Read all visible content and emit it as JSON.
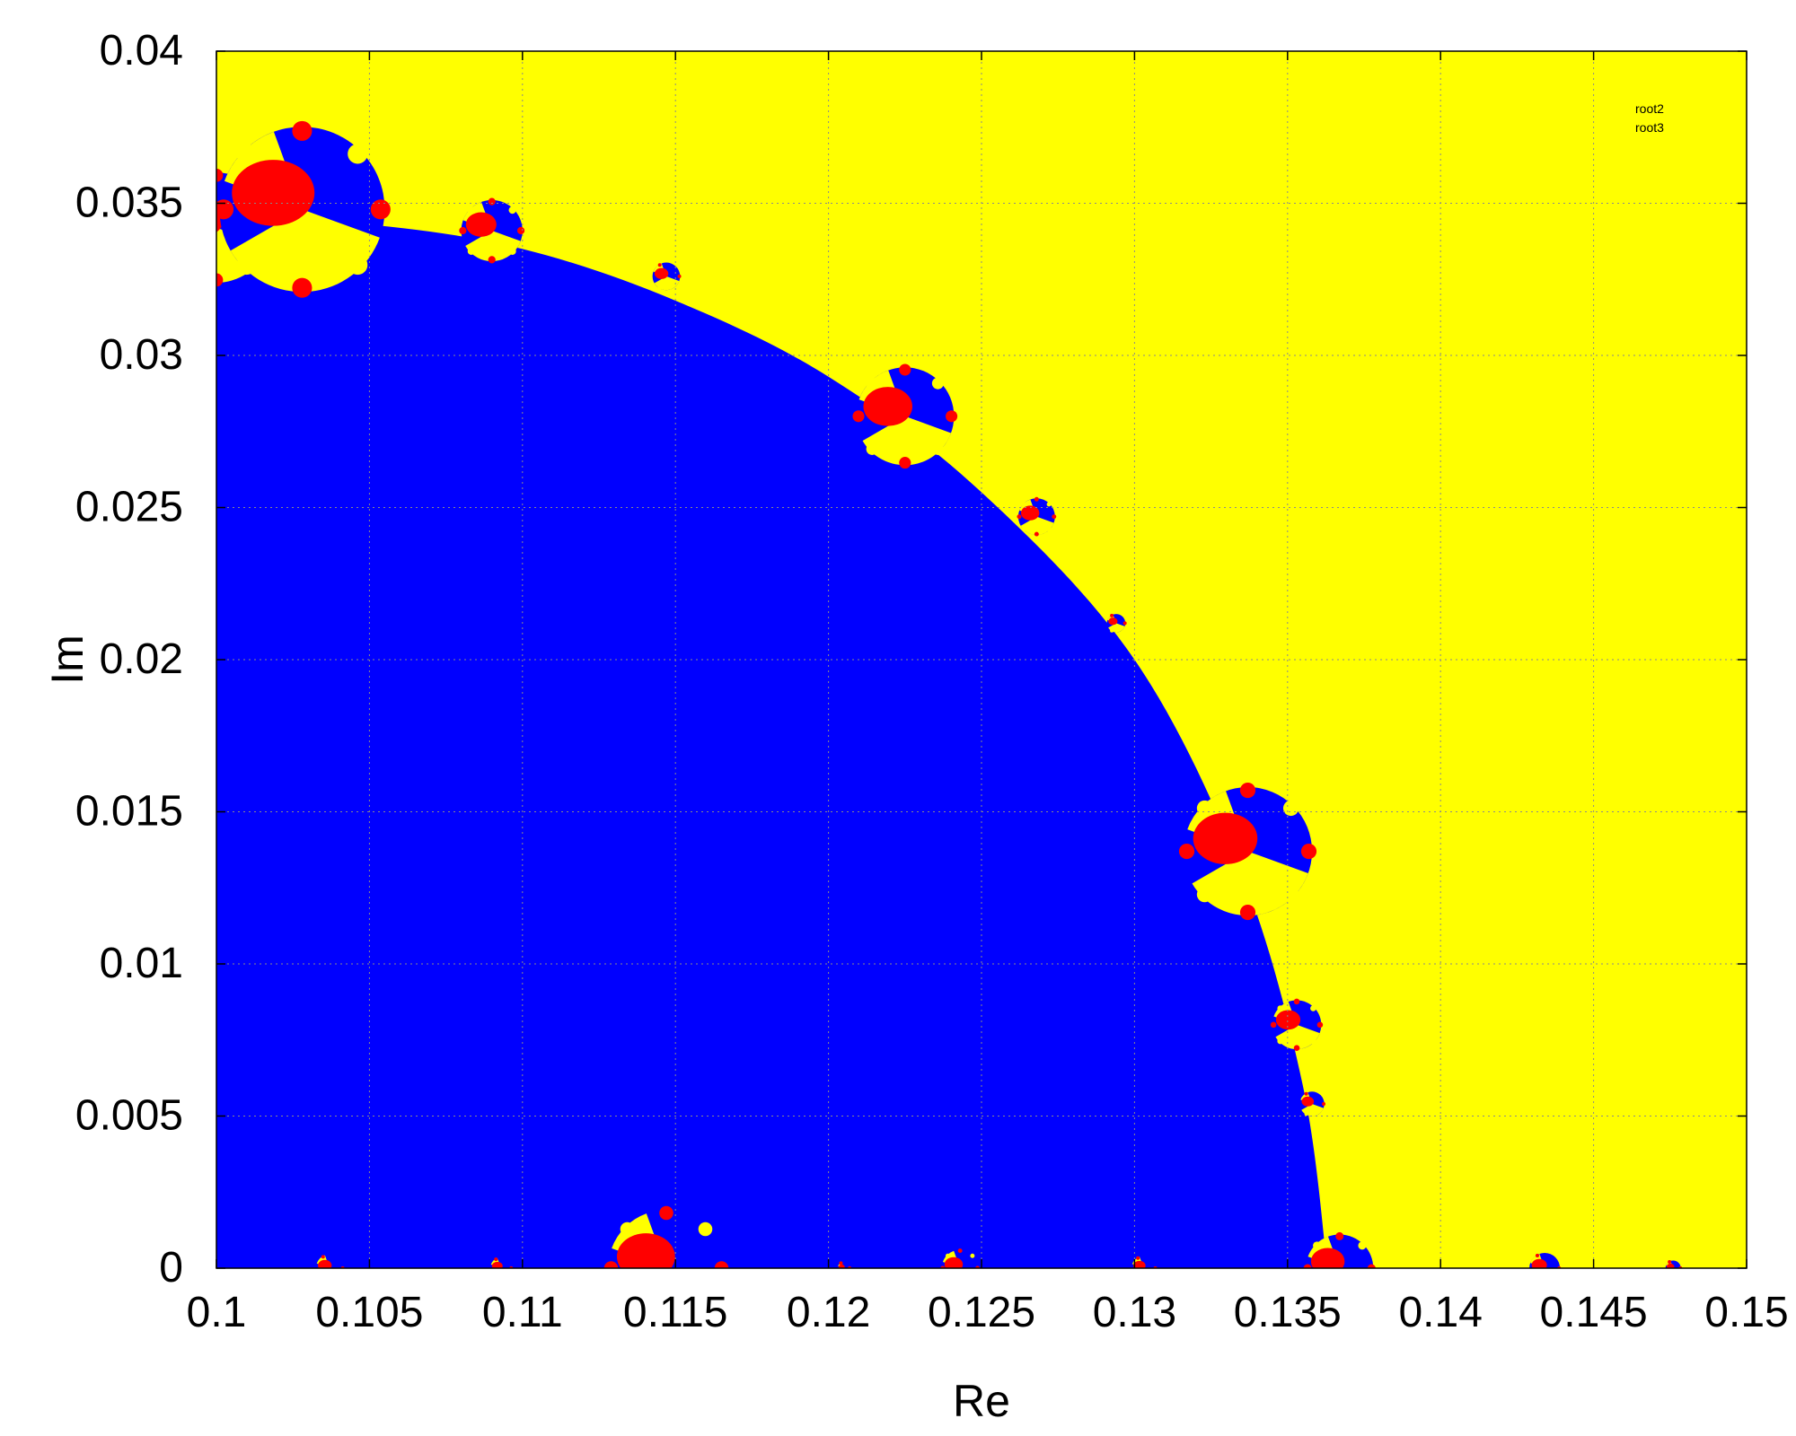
{
  "chart_data": {
    "type": "heatmap",
    "xlabel": "Re",
    "ylabel": "Im",
    "xlim": [
      0.1,
      0.15
    ],
    "ylim": [
      0,
      0.04
    ],
    "x_ticks": [
      "0.1",
      "0.105",
      "0.11",
      "0.115",
      "0.12",
      "0.125",
      "0.13",
      "0.135",
      "0.14",
      "0.145",
      "0.15"
    ],
    "y_ticks": [
      "0",
      "0.005",
      "0.01",
      "0.015",
      "0.02",
      "0.025",
      "0.03",
      "0.035",
      "0.04"
    ],
    "x_tick_values": [
      0.1,
      0.105,
      0.11,
      0.115,
      0.12,
      0.125,
      0.13,
      0.135,
      0.14,
      0.145,
      0.15
    ],
    "y_tick_values": [
      0,
      0.005,
      0.01,
      0.015,
      0.02,
      0.025,
      0.03,
      0.035,
      0.04
    ],
    "grid": true,
    "legend_position": "top-right",
    "legend": [
      "root2",
      "root3"
    ],
    "colors": {
      "root1": "#0000ff",
      "root2": "#ff0000",
      "root3": "#ffff00"
    },
    "main_region": {
      "color": "blue",
      "boundary": [
        [
          0.1,
          0.0345
        ],
        [
          0.105,
          0.0343
        ],
        [
          0.11,
          0.0335
        ],
        [
          0.115,
          0.0318
        ],
        [
          0.12,
          0.0293
        ],
        [
          0.125,
          0.0255
        ],
        [
          0.13,
          0.02
        ],
        [
          0.1335,
          0.013
        ],
        [
          0.1355,
          0.006
        ],
        [
          0.1363,
          0.0
        ]
      ]
    },
    "bulbs": [
      {
        "re": 0.1,
        "im": 0.0342,
        "r": 0.0018
      },
      {
        "re": 0.1028,
        "im": 0.0348,
        "r": 0.0027
      },
      {
        "re": 0.109,
        "im": 0.0341,
        "r": 0.001
      },
      {
        "re": 0.1147,
        "im": 0.0326,
        "r": 0.00045
      },
      {
        "re": 0.1225,
        "im": 0.028,
        "r": 0.0016
      },
      {
        "re": 0.1268,
        "im": 0.0247,
        "r": 0.0006
      },
      {
        "re": 0.1294,
        "im": 0.0212,
        "r": 0.0003
      },
      {
        "re": 0.1337,
        "im": 0.0137,
        "r": 0.0021
      },
      {
        "re": 0.1353,
        "im": 0.008,
        "r": 0.0008
      },
      {
        "re": 0.1358,
        "im": 0.0054,
        "r": 0.0004
      },
      {
        "re": 0.1147,
        "im": 0.0,
        "r": 0.0019
      },
      {
        "re": 0.1367,
        "im": 0.0,
        "r": 0.0011
      },
      {
        "re": 0.1243,
        "im": 0.0,
        "r": 0.0006
      },
      {
        "re": 0.1037,
        "im": 0.0,
        "r": 0.00045
      },
      {
        "re": 0.1303,
        "im": 0.0,
        "r": 0.0004
      },
      {
        "re": 0.1093,
        "im": 0.0,
        "r": 0.00035
      },
      {
        "re": 0.1434,
        "im": 0.0,
        "r": 0.0005
      },
      {
        "re": 0.1476,
        "im": 0.0,
        "r": 0.00025
      },
      {
        "re": 0.1205,
        "im": 0.0,
        "r": 0.0002
      }
    ]
  }
}
